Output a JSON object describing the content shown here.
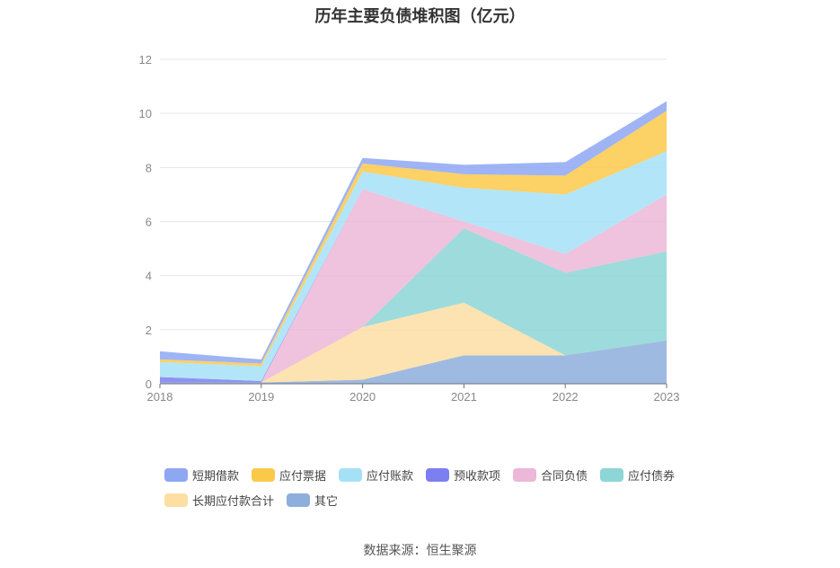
{
  "chart_data": {
    "type": "area",
    "title": "历年主要负债堆积图（亿元）",
    "x": [
      "2018",
      "2019",
      "2020",
      "2021",
      "2022",
      "2023"
    ],
    "ylim": [
      0,
      12
    ],
    "yticks": [
      "0",
      "2",
      "4",
      "6",
      "8",
      "10",
      "12"
    ],
    "grid": true,
    "legend_position": "bottom",
    "stacked": true,
    "series": [
      {
        "name": "其它",
        "color": "#8eaedb",
        "values": [
          0.05,
          0.05,
          0.15,
          1.05,
          1.05,
          1.6
        ]
      },
      {
        "name": "长期应付款合计",
        "color": "#fddea3",
        "values": [
          0.0,
          0.0,
          1.95,
          1.95,
          0.0,
          0.0
        ]
      },
      {
        "name": "应付债券",
        "color": "#8dd5d6",
        "values": [
          0.0,
          0.0,
          0.0,
          2.75,
          3.05,
          3.3
        ]
      },
      {
        "name": "合同负债",
        "color": "#ecb7d8",
        "values": [
          0.0,
          0.0,
          5.1,
          0.25,
          0.7,
          2.1
        ]
      },
      {
        "name": "预收款项",
        "color": "#7b7ff0",
        "values": [
          0.2,
          0.05,
          0.0,
          0.0,
          0.0,
          0.0
        ]
      },
      {
        "name": "应付账款",
        "color": "#a6e0f7",
        "values": [
          0.55,
          0.55,
          0.65,
          1.25,
          2.2,
          1.6
        ]
      },
      {
        "name": "应付票据",
        "color": "#fbc94a",
        "values": [
          0.1,
          0.1,
          0.3,
          0.5,
          0.7,
          1.5
        ]
      },
      {
        "name": "短期借款",
        "color": "#8ea7f2",
        "values": [
          0.3,
          0.15,
          0.2,
          0.35,
          0.5,
          0.35
        ]
      }
    ]
  },
  "legend": [
    {
      "label": "短期借款",
      "color": "#8ea7f2"
    },
    {
      "label": "应付票据",
      "color": "#fbc94a"
    },
    {
      "label": "应付账款",
      "color": "#a6e0f7"
    },
    {
      "label": "预收款项",
      "color": "#7b7ff0"
    },
    {
      "label": "合同负债",
      "color": "#ecb7d8"
    },
    {
      "label": "应付债券",
      "color": "#8dd5d6"
    },
    {
      "label": "长期应付款合计",
      "color": "#fddea3"
    },
    {
      "label": "其它",
      "color": "#8eaedb"
    }
  ],
  "source": "数据来源：恒生聚源"
}
